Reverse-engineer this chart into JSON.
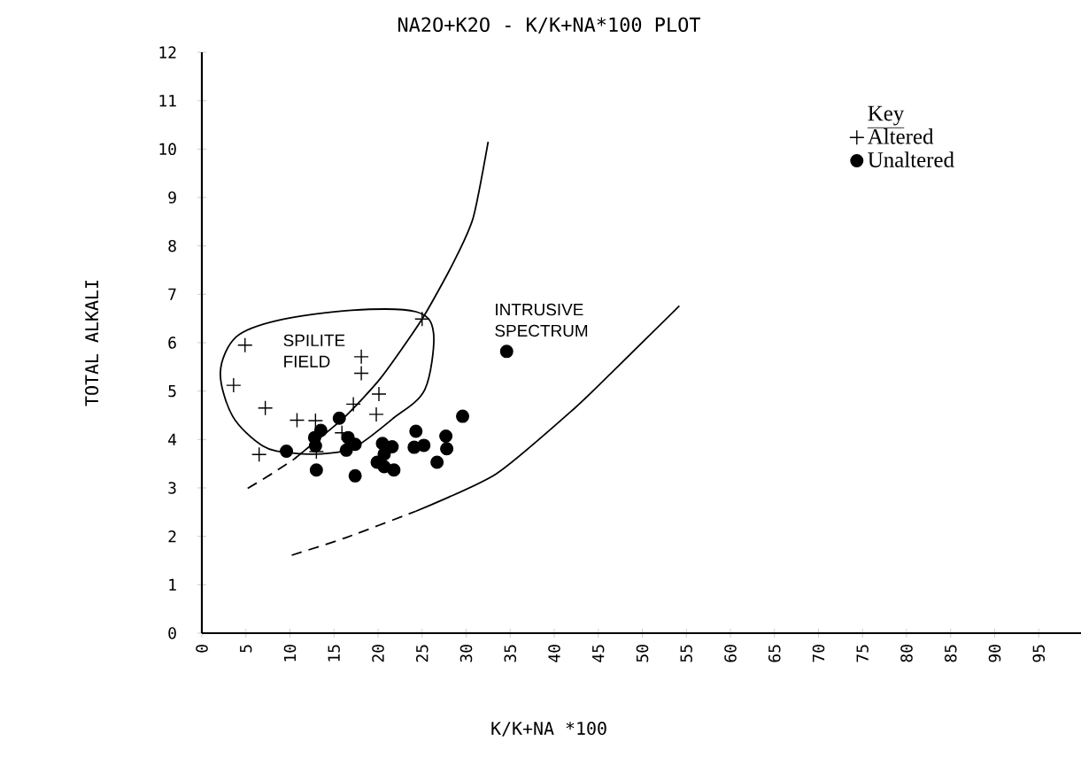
{
  "chart_data": {
    "type": "scatter",
    "title": "NA2O+K2O - K/K+NA*100 PLOT",
    "xlabel": "K/K+NA *100",
    "ylabel": "TOTAL ALKALI",
    "legend_title": "Key",
    "xlim": [
      0,
      100
    ],
    "ylim": [
      0,
      12
    ],
    "xticks": [
      0,
      5,
      10,
      15,
      20,
      25,
      30,
      35,
      40,
      45,
      50,
      55,
      60,
      65,
      70,
      75,
      80,
      85,
      90,
      95
    ],
    "yticks": [
      0,
      1,
      2,
      3,
      4,
      5,
      6,
      7,
      8,
      9,
      10,
      11,
      12
    ],
    "grid": false,
    "legend": "top right",
    "series": [
      {
        "name": "Altered",
        "marker": "cross",
        "color": "#000000",
        "x": [
          4.9,
          3.6,
          7.2,
          10.8,
          12.9,
          6.5,
          18.1,
          18.1,
          20.1,
          19.8,
          17.2,
          15.9,
          13.0,
          25.0
        ],
        "values": [
          5.95,
          5.12,
          4.65,
          4.4,
          4.39,
          3.69,
          5.71,
          5.37,
          4.94,
          4.52,
          4.73,
          4.14,
          3.75,
          6.49
        ]
      },
      {
        "name": "Unaltered",
        "marker": "circle",
        "color": "#000000",
        "x": [
          9.6,
          15.6,
          13.5,
          12.8,
          12.9,
          13.0,
          16.6,
          17.4,
          16.4,
          17.4,
          20.5,
          21.6,
          20.7,
          19.9,
          20.7,
          21.8,
          24.3,
          24.1,
          25.2,
          27.7,
          27.8,
          26.7,
          29.6,
          34.6
        ],
        "values": [
          3.76,
          4.44,
          4.19,
          4.04,
          3.87,
          3.37,
          4.04,
          3.9,
          3.78,
          3.25,
          3.92,
          3.85,
          3.7,
          3.53,
          3.44,
          3.37,
          4.17,
          3.84,
          3.88,
          4.07,
          3.81,
          3.53,
          4.48,
          5.82
        ]
      },
      {
        "type": "line",
        "line_style": "dashed",
        "color": "#000000",
        "x": [
          5.2,
          8.0,
          10.5
        ],
        "values": [
          2.99,
          3.3,
          3.6
        ]
      },
      {
        "type": "line",
        "line_style": "solid",
        "color": "#000000",
        "x": [
          10.5,
          12.3,
          16.3,
          20.3,
          25.0,
          28.6,
          30.8,
          32.5
        ],
        "values": [
          3.6,
          3.87,
          4.48,
          5.27,
          6.49,
          7.67,
          8.58,
          10.15
        ]
      },
      {
        "type": "line",
        "line_style": "dashed",
        "color": "#000000",
        "x": [
          10.2,
          16.3,
          24.3
        ],
        "values": [
          1.61,
          1.97,
          2.52
        ]
      },
      {
        "type": "line",
        "line_style": "solid",
        "color": "#000000",
        "x": [
          24.3,
          33.4,
          42.4,
          47.4,
          54.2
        ],
        "values": [
          2.52,
          3.29,
          4.66,
          5.54,
          6.76
        ]
      }
    ],
    "annotations": [
      "SPILITE FIELD",
      "INTRUSIVE SPECTRUM"
    ]
  }
}
